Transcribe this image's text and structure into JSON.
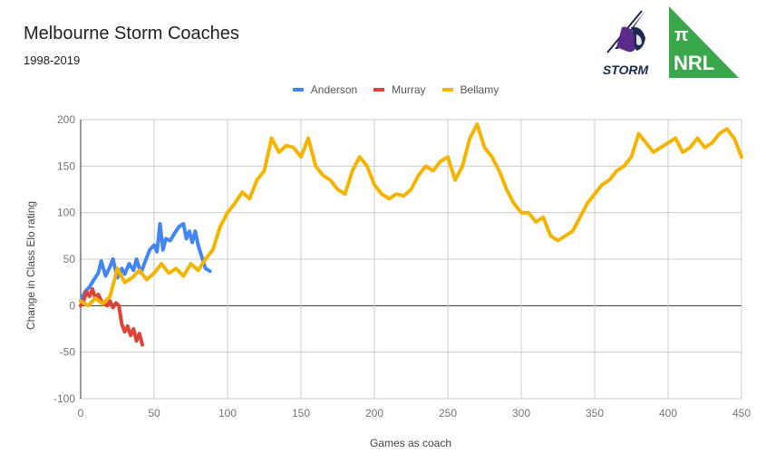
{
  "header": {
    "title": "Melbourne Storm Coaches",
    "subtitle": "1998-2019"
  },
  "logos": {
    "storm": {
      "label": "STORM",
      "primary_color": "#5b2b8c",
      "dark_color": "#1b2a4e"
    },
    "nrl": {
      "pi": "π",
      "label": "NRL",
      "color": "#3aa84a"
    }
  },
  "legend": [
    {
      "name": "Anderson",
      "color": "#4285f4"
    },
    {
      "name": "Murray",
      "color": "#db4437"
    },
    {
      "name": "Bellamy",
      "color": "#f4b400"
    }
  ],
  "chart_data": {
    "type": "line",
    "title": "Melbourne Storm Coaches",
    "subtitle": "1998-2019",
    "xlabel": "Games as coach",
    "ylabel": "Change in Class Elo rating",
    "xlim": [
      0,
      450
    ],
    "ylim": [
      -100,
      200
    ],
    "xticks": [
      "0",
      "50",
      "100",
      "150",
      "200",
      "250",
      "300",
      "350",
      "400",
      "450"
    ],
    "yticks": [
      "200",
      "150",
      "100",
      "50",
      "0",
      "-50",
      "-100"
    ],
    "grid": true,
    "legend_position": "top",
    "series": [
      {
        "name": "Anderson",
        "color": "#4285f4",
        "x": [
          0,
          3,
          6,
          9,
          12,
          14,
          17,
          20,
          22,
          25,
          28,
          30,
          33,
          36,
          38,
          41,
          44,
          47,
          50,
          52,
          54,
          56,
          58,
          61,
          64,
          67,
          70,
          72,
          74,
          76,
          78,
          80,
          82,
          85,
          88
        ],
        "y": [
          5,
          15,
          20,
          28,
          35,
          48,
          32,
          42,
          50,
          30,
          40,
          34,
          45,
          38,
          50,
          35,
          48,
          60,
          65,
          58,
          88,
          60,
          72,
          70,
          78,
          85,
          88,
          72,
          80,
          68,
          80,
          65,
          55,
          40,
          37
        ]
      },
      {
        "name": "Murray",
        "color": "#db4437",
        "x": [
          0,
          2,
          4,
          6,
          8,
          10,
          12,
          14,
          16,
          18,
          20,
          22,
          24,
          26,
          28,
          30,
          32,
          34,
          36,
          38,
          40,
          42
        ],
        "y": [
          0,
          5,
          15,
          10,
          18,
          8,
          12,
          5,
          2,
          0,
          5,
          -2,
          3,
          0,
          -20,
          -28,
          -22,
          -32,
          -25,
          -38,
          -30,
          -42
        ]
      },
      {
        "name": "Bellamy",
        "color": "#f4b400",
        "x": [
          0,
          5,
          10,
          15,
          20,
          25,
          30,
          35,
          40,
          45,
          50,
          55,
          60,
          65,
          70,
          75,
          80,
          85,
          90,
          95,
          100,
          105,
          110,
          115,
          120,
          125,
          130,
          135,
          140,
          145,
          150,
          155,
          160,
          165,
          170,
          175,
          180,
          185,
          190,
          195,
          200,
          205,
          210,
          215,
          220,
          225,
          230,
          235,
          240,
          245,
          250,
          255,
          260,
          265,
          270,
          275,
          280,
          285,
          290,
          295,
          300,
          305,
          310,
          315,
          320,
          325,
          330,
          335,
          340,
          345,
          350,
          355,
          360,
          365,
          370,
          375,
          380,
          385,
          390,
          395,
          400,
          405,
          410,
          415,
          420,
          425,
          430,
          435,
          440,
          445,
          450
        ],
        "y": [
          5,
          0,
          8,
          2,
          10,
          40,
          25,
          30,
          38,
          28,
          35,
          45,
          35,
          40,
          32,
          45,
          38,
          50,
          60,
          85,
          100,
          110,
          122,
          115,
          135,
          145,
          180,
          165,
          172,
          170,
          160,
          180,
          150,
          140,
          135,
          125,
          120,
          145,
          160,
          150,
          130,
          120,
          115,
          120,
          118,
          125,
          140,
          150,
          145,
          155,
          160,
          135,
          150,
          180,
          195,
          170,
          160,
          145,
          125,
          110,
          100,
          100,
          90,
          95,
          75,
          70,
          75,
          80,
          95,
          110,
          120,
          130,
          135,
          145,
          150,
          160,
          185,
          175,
          165,
          170,
          175,
          180,
          165,
          170,
          180,
          170,
          175,
          185,
          190,
          180,
          160
        ]
      }
    ]
  }
}
